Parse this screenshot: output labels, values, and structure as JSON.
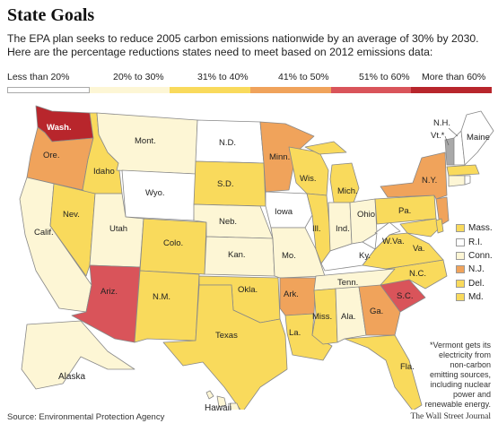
{
  "title": "State Goals",
  "intro_lines": [
    "The EPA plan seeks to reduce 2005 carbon emissions nationwide by an average of 30% by 2030.",
    "Here are the percentage reductions states need to meet based on 2012 emissions data:"
  ],
  "legend": [
    {
      "label": "Less than 20%",
      "color": "#ffffff"
    },
    {
      "label": "20% to 30%",
      "color": "#fdf6d5"
    },
    {
      "label": "31% to 40%",
      "color": "#f9da5c"
    },
    {
      "label": "41% to 50%",
      "color": "#f0a35b"
    },
    {
      "label": "51% to 60%",
      "color": "#d9545a"
    },
    {
      "label": "More than 60%",
      "color": "#b8262c"
    }
  ],
  "gray_color": "#a9a9a9",
  "states": {
    "wash": "Wash.",
    "ore": "Ore.",
    "calif": "Calif.",
    "idaho": "Idaho",
    "nev": "Nev.",
    "mont": "Mont.",
    "wyo": "Wyo.",
    "utah": "Utah",
    "colo": "Colo.",
    "ariz": "Ariz.",
    "nm": "N.M.",
    "nd": "N.D.",
    "sd": "S.D.",
    "neb": "Neb.",
    "kan": "Kan.",
    "okla": "Okla.",
    "texas": "Texas",
    "minn": "Minn.",
    "iowa": "Iowa",
    "mo": "Mo.",
    "ark": "Ark.",
    "la": "La.",
    "wis": "Wis.",
    "ill": "Ill.",
    "mich": "Mich.",
    "ind": "Ind.",
    "ohio": "Ohio",
    "ky": "Ky.",
    "tenn": "Tenn.",
    "miss": "Miss.",
    "ala": "Ala.",
    "ga": "Ga.",
    "fla": "Fla.",
    "sc": "S.C.",
    "nc": "N.C.",
    "va": "Va.",
    "wva": "W.Va.",
    "pa": "Pa.",
    "ny": "N.Y.",
    "maine": "Maine",
    "nh": "N.H.",
    "vt": "Vt.*",
    "alaska": "Alaska",
    "hawaii": "Hawaii"
  },
  "ne_legend": [
    {
      "label": "Mass.",
      "color": "#f9da5c"
    },
    {
      "label": "R.I.",
      "color": "#ffffff"
    },
    {
      "label": "Conn.",
      "color": "#fdf6d5"
    },
    {
      "label": "N.J.",
      "color": "#f0a35b"
    },
    {
      "label": "Del.",
      "color": "#f9da5c"
    },
    {
      "label": "Md.",
      "color": "#f9da5c"
    }
  ],
  "note_lines": [
    "*Vermont gets its",
    "electricity from",
    "non-carbon",
    "emitting sources,",
    "including nuclear",
    "power and",
    "renewable energy."
  ],
  "source": "Source: Environmental Protection Agency",
  "credit": "The Wall Street Journal"
}
